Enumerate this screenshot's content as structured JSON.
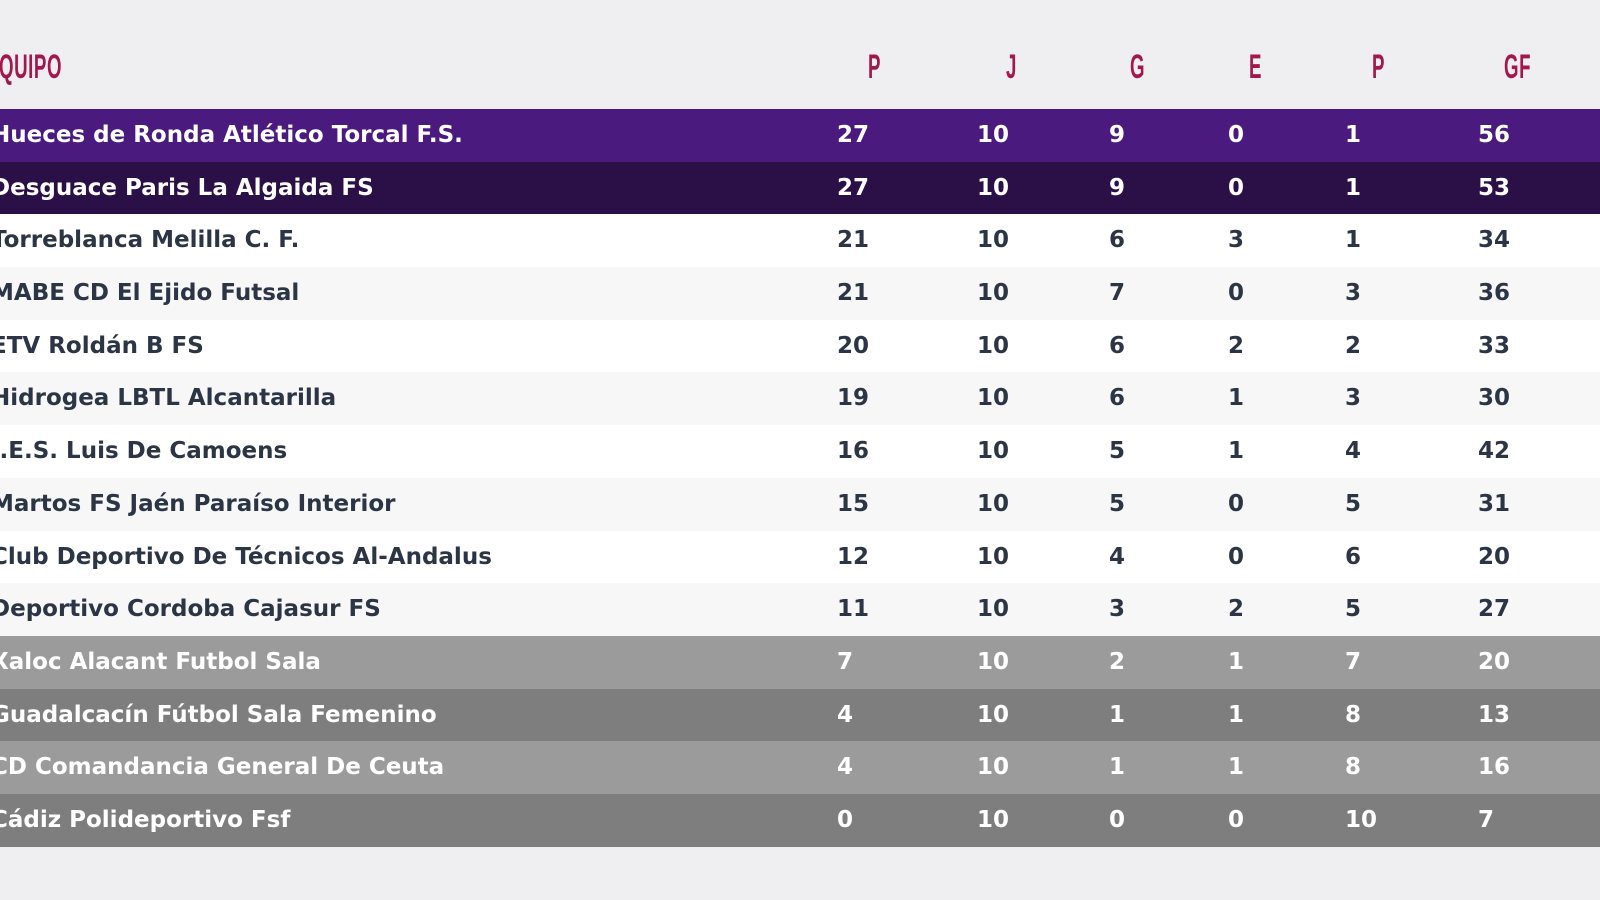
{
  "header": {
    "team": "EQUIPO",
    "columns": [
      "P",
      "J",
      "G",
      "E",
      "P",
      "GF"
    ]
  },
  "colors": {
    "header_text": "#a3174d",
    "first": "#4b1a7e",
    "second": "#2a1046",
    "relegation_light": "#9b9b9b",
    "relegation_dark": "#7e7e7e"
  },
  "rows": [
    {
      "team": "Hueces de Ronda Atlético Torcal F.S.",
      "stats": [
        "27",
        "10",
        "9",
        "0",
        "1",
        "56"
      ]
    },
    {
      "team": "Desguace Paris La Algaida FS",
      "stats": [
        "27",
        "10",
        "9",
        "0",
        "1",
        "53"
      ]
    },
    {
      "team": "Torreblanca Melilla C. F.",
      "stats": [
        "21",
        "10",
        "6",
        "3",
        "1",
        "34"
      ]
    },
    {
      "team": "MABE CD El Ejido Futsal",
      "stats": [
        "21",
        "10",
        "7",
        "0",
        "3",
        "36"
      ]
    },
    {
      "team": "ETV Roldán B FS",
      "stats": [
        "20",
        "10",
        "6",
        "2",
        "2",
        "33"
      ]
    },
    {
      "team": "Hidrogea LBTL Alcantarilla",
      "stats": [
        "19",
        "10",
        "6",
        "1",
        "3",
        "30"
      ]
    },
    {
      "team": "I.E.S. Luis De Camoens",
      "stats": [
        "16",
        "10",
        "5",
        "1",
        "4",
        "42"
      ]
    },
    {
      "team": "Martos FS Jaén Paraíso Interior",
      "stats": [
        "15",
        "10",
        "5",
        "0",
        "5",
        "31"
      ]
    },
    {
      "team": "Club Deportivo De Técnicos Al-Andalus",
      "stats": [
        "12",
        "10",
        "4",
        "0",
        "6",
        "20"
      ]
    },
    {
      "team": "Deportivo Cordoba Cajasur FS",
      "stats": [
        "11",
        "10",
        "3",
        "2",
        "5",
        "27"
      ]
    },
    {
      "team": "Xaloc Alacant Futbol Sala",
      "stats": [
        "7",
        "10",
        "2",
        "1",
        "7",
        "20"
      ]
    },
    {
      "team": "Guadalcacín Fútbol Sala Femenino",
      "stats": [
        "4",
        "10",
        "1",
        "1",
        "8",
        "13"
      ]
    },
    {
      "team": "CD Comandancia General De Ceuta",
      "stats": [
        "4",
        "10",
        "1",
        "1",
        "8",
        "16"
      ]
    },
    {
      "team": "Cádiz Polideportivo Fsf",
      "stats": [
        "0",
        "10",
        "0",
        "0",
        "10",
        "7"
      ]
    }
  ]
}
